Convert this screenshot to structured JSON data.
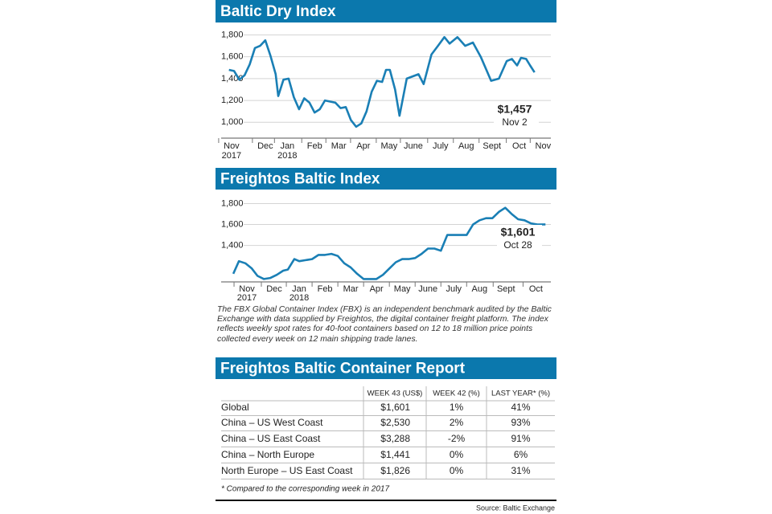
{
  "chart_data": [
    {
      "type": "line",
      "title": "Baltic Dry Index",
      "color": "#1a7fb5",
      "grid": true,
      "xlim": [
        -0.4,
        12.3
      ],
      "ylim": [
        870,
        1840
      ],
      "yticks": [
        {
          "value": 1000,
          "label": "1,000"
        },
        {
          "value": 1200,
          "label": "1,200"
        },
        {
          "value": 1400,
          "label": "1,400"
        },
        {
          "value": 1600,
          "label": "1,600"
        },
        {
          "value": 1800,
          "label": "1,800"
        }
      ],
      "xticks": [
        {
          "value": 0,
          "label": "Nov"
        },
        {
          "value": 1.3,
          "label": "Dec"
        },
        {
          "value": 2.15,
          "label": "Jan"
        },
        {
          "value": 3.2,
          "label": "Feb"
        },
        {
          "value": 4.13,
          "label": "Mar"
        },
        {
          "value": 5.08,
          "label": "Apr"
        },
        {
          "value": 6.07,
          "label": "May"
        },
        {
          "value": 7.0,
          "label": "June"
        },
        {
          "value": 8.05,
          "label": "July"
        },
        {
          "value": 9.04,
          "label": "Aug"
        },
        {
          "value": 10.03,
          "label": "Sept"
        },
        {
          "value": 11.08,
          "label": "Oct"
        },
        {
          "value": 12.0,
          "label": "Nov"
        }
      ],
      "year_labels": [
        {
          "value": 0,
          "label": "2017"
        },
        {
          "value": 2.15,
          "label": "2018"
        }
      ],
      "x": [
        -0.1,
        0.1,
        0.3,
        0.5,
        0.7,
        0.9,
        1.1,
        1.3,
        1.5,
        1.7,
        1.8,
        2.0,
        2.2,
        2.4,
        2.6,
        2.8,
        3.0,
        3.2,
        3.4,
        3.6,
        3.8,
        4.0,
        4.2,
        4.4,
        4.6,
        4.8,
        5.0,
        5.2,
        5.4,
        5.6,
        5.8,
        5.95,
        6.1,
        6.3,
        6.47,
        6.75,
        7.2,
        7.4,
        7.7,
        7.95,
        8.2,
        8.4,
        8.7,
        9.0,
        9.3,
        9.6,
        10.0,
        10.3,
        10.6,
        10.8,
        11.0,
        11.15,
        11.35,
        11.5,
        11.67
      ],
      "values": [
        1480,
        1470,
        1390,
        1430,
        1530,
        1680,
        1700,
        1750,
        1610,
        1440,
        1240,
        1390,
        1400,
        1230,
        1120,
        1220,
        1180,
        1090,
        1120,
        1200,
        1190,
        1180,
        1130,
        1140,
        1020,
        960,
        990,
        1100,
        1280,
        1380,
        1370,
        1480,
        1480,
        1300,
        1060,
        1400,
        1440,
        1350,
        1620,
        1700,
        1780,
        1720,
        1780,
        1700,
        1730,
        1600,
        1380,
        1400,
        1560,
        1580,
        1520,
        1590,
        1580,
        1520,
        1457
      ],
      "annotation": {
        "value": 1457,
        "value_label": "$1,457",
        "date": "Nov 2"
      }
    },
    {
      "type": "line",
      "title": "Freightos Baltic Index",
      "color": "#1a7fb5",
      "grid": true,
      "xlim": [
        -1.0,
        11.8
      ],
      "ylim": [
        1060,
        1880
      ],
      "yticks": [
        {
          "value": 1400,
          "label": "1,400"
        },
        {
          "value": 1600,
          "label": "1,600"
        },
        {
          "value": 1800,
          "label": "1,800"
        }
      ],
      "xticks": [
        {
          "value": 0,
          "label": "Nov"
        },
        {
          "value": 1.06,
          "label": "Dec"
        },
        {
          "value": 2.03,
          "label": "Jan"
        },
        {
          "value": 3.03,
          "label": "Feb"
        },
        {
          "value": 4.03,
          "label": "Mar"
        },
        {
          "value": 5.03,
          "label": "Apr"
        },
        {
          "value": 6.03,
          "label": "May"
        },
        {
          "value": 7.03,
          "label": "June"
        },
        {
          "value": 8.03,
          "label": "July"
        },
        {
          "value": 9.03,
          "label": "Aug"
        },
        {
          "value": 10.06,
          "label": "Sept"
        },
        {
          "value": 11.22,
          "label": "Oct"
        }
      ],
      "year_labels": [
        {
          "value": 0,
          "label": "2017"
        },
        {
          "value": 2.03,
          "label": "2018"
        }
      ],
      "x": [
        -0.53,
        -0.31,
        -0.06,
        0.19,
        0.41,
        0.66,
        0.91,
        1.16,
        1.41,
        1.59,
        1.84,
        2.03,
        2.28,
        2.53,
        2.78,
        3.03,
        3.28,
        3.53,
        3.78,
        4.03,
        4.28,
        4.53,
        4.78,
        5.03,
        5.28,
        5.53,
        5.78,
        6.03,
        6.28,
        6.53,
        6.78,
        7.03,
        7.28,
        7.53,
        7.78,
        8.03,
        8.28,
        8.53,
        8.78,
        9.03,
        9.28,
        9.53,
        9.78,
        10.03,
        10.28,
        10.53,
        10.78,
        11.03,
        11.28,
        11.59
      ],
      "values": [
        1130,
        1250,
        1230,
        1180,
        1110,
        1080,
        1090,
        1120,
        1160,
        1170,
        1270,
        1250,
        1260,
        1270,
        1310,
        1310,
        1320,
        1300,
        1230,
        1190,
        1130,
        1080,
        1080,
        1080,
        1120,
        1180,
        1240,
        1270,
        1270,
        1280,
        1320,
        1370,
        1370,
        1350,
        1500,
        1500,
        1500,
        1500,
        1600,
        1640,
        1660,
        1660,
        1720,
        1760,
        1700,
        1650,
        1640,
        1610,
        1600,
        1601
      ],
      "annotation": {
        "value": 1601,
        "value_label": "$1,601",
        "date": "Oct 28"
      }
    }
  ],
  "note": "The FBX Global Container Index (FBX) is an independent benchmark audited by the Baltic Exchange with data supplied by Freightos, the digital container freight platform. The index reflects weekly spot rates for 40-foot containers based on 12 to 18 million price points collected every week on 12 main shipping trade lanes.",
  "table": {
    "title": "Freightos Baltic Container Report",
    "columns": [
      "WEEK 43 (US$)",
      "WEEK 42 (%)",
      "LAST YEAR* (%)"
    ],
    "rows": [
      [
        "Global",
        "$1,601",
        "1%",
        "41%"
      ],
      [
        "China – US West Coast",
        "$2,530",
        "2%",
        "93%"
      ],
      [
        "China – US East Coast",
        "$3,288",
        "-2%",
        "91%"
      ],
      [
        "China – North Europe",
        "$1,441",
        "0%",
        "6%"
      ],
      [
        "North Europe – US East Coast",
        "$1,826",
        "0%",
        "31%"
      ]
    ],
    "footnote": "* Compared to the corresponding week in 2017"
  },
  "source": "Source: Baltic Exchange"
}
